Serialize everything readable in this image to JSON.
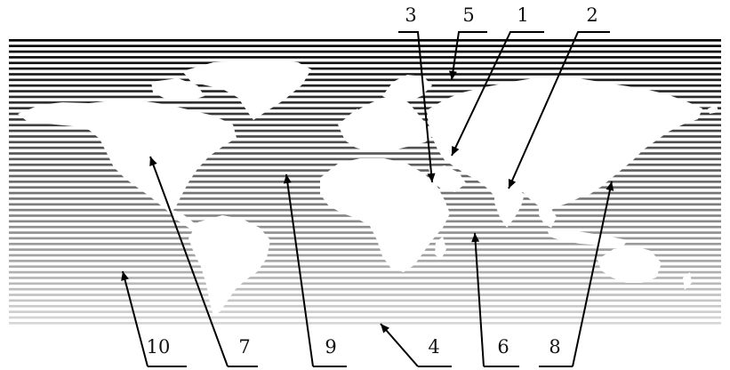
{
  "map": {
    "style": "horizontal-stripe world map, continents in white",
    "stripe_color_top": "#000000",
    "stripe_color_bottom": "#d8d8d8",
    "continent_fill": "#ffffff",
    "callouts": [
      {
        "id": "1",
        "label": "1"
      },
      {
        "id": "2",
        "label": "2"
      },
      {
        "id": "3",
        "label": "3"
      },
      {
        "id": "4",
        "label": "4"
      },
      {
        "id": "5",
        "label": "5"
      },
      {
        "id": "6",
        "label": "6"
      },
      {
        "id": "7",
        "label": "7"
      },
      {
        "id": "8",
        "label": "8"
      },
      {
        "id": "9",
        "label": "9"
      },
      {
        "id": "10",
        "label": "10"
      }
    ]
  }
}
